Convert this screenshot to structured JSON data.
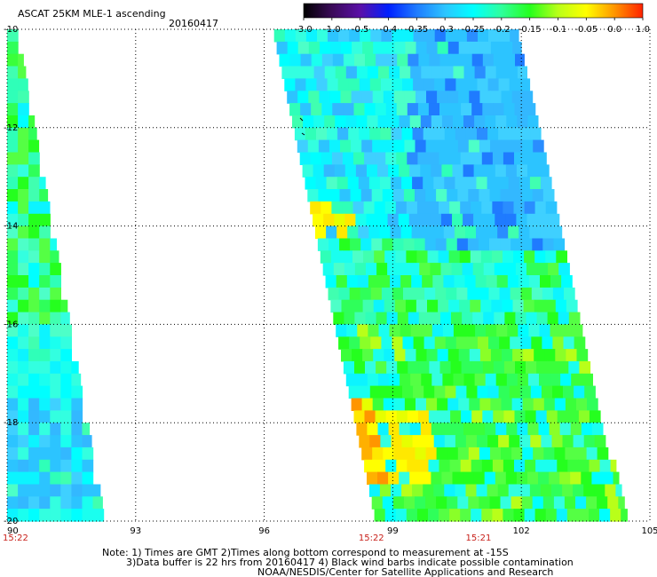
{
  "header": {
    "title": "ASCAT 25KM MLE-1 ascending",
    "date": "20160417"
  },
  "colorbar": {
    "labels": [
      "-3.0",
      "-1.0",
      "-0.5",
      "-0.4",
      "-0.35",
      "-0.3",
      "-0.25",
      "-0.2",
      "-0.15",
      "-0.1",
      "-0.05",
      "0.0",
      "1.0"
    ],
    "stops": [
      "#000000",
      "#3a0a58",
      "#5a10a8",
      "#0020ff",
      "#1f7bff",
      "#2cc4ff",
      "#00ffff",
      "#2fff9c",
      "#25ff1e",
      "#b9ff19",
      "#ffff00",
      "#ff9500",
      "#ff2200"
    ]
  },
  "notes": {
    "line1": "Note: 1) Times are GMT 2)Times along bottom correspond to measurement at -15S",
    "line2": "3)Data buffer is 22 hrs from 20160417 4) Black wind barbs indicate possible contamination",
    "line3": "NOAA/NESDIS/Center for Satellite Applications and Research"
  },
  "chart_data": {
    "type": "heatmap",
    "title": "ASCAT 25KM MLE-1 ascending",
    "subtitle": "20160417",
    "xlabel": "",
    "ylabel": "",
    "x_ticks": [
      90,
      93,
      96,
      99,
      102,
      105
    ],
    "x_tick_labels": [
      "90",
      "93",
      "96",
      "99",
      "102",
      "105"
    ],
    "y_ticks": [
      -10,
      -12,
      -14,
      -16,
      -18,
      -20
    ],
    "y_tick_labels": [
      "-10",
      "-12",
      "-14",
      "-16",
      "-18",
      "-20"
    ],
    "xlim": [
      90,
      105
    ],
    "ylim": [
      -20,
      -10
    ],
    "grid": "dotted",
    "time_labels": [
      {
        "x": 90,
        "text": "15:22"
      },
      {
        "x": 98.5,
        "text": "15:22"
      },
      {
        "x": 101,
        "text": "15:21"
      }
    ],
    "swaths": [
      {
        "name": "",
        "top": [
          [
            90,
            -10
          ],
          [
            90.25,
            -10
          ]
        ],
        "bottom": [
          [
            90,
            -20
          ],
          [
            92.3,
            -20
          ]
        ],
        "dominant": "cyan-green"
      },
      {
        "name": "",
        "top": [
          [
            96.2,
            -10
          ],
          [
            101.9,
            -10
          ]
        ],
        "bottom": [
          [
            98.6,
            -20
          ],
          [
            104.5,
            -20
          ]
        ],
        "dominant": "cyan-blue / green-yellow"
      }
    ],
    "colorbar_range": [
      -3.0,
      1.0
    ],
    "colorbar_labels": [
      "-3.0",
      "-1.0",
      "-0.5",
      "-0.4",
      "-0.35",
      "-0.3",
      "-0.25",
      "-0.2",
      "-0.15",
      "-0.1",
      "-0.05",
      "0.0",
      "1.0"
    ]
  }
}
